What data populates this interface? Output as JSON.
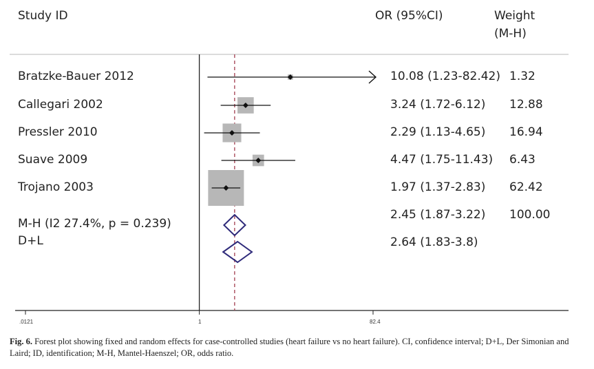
{
  "headers": {
    "study": "Study ID",
    "or": "OR (95%CI)",
    "weight_line1": "Weight",
    "weight_line2": "(M-H)"
  },
  "caption": {
    "label": "Fig. 6.",
    "text": "Forest plot showing fixed and random effects for case-controlled studies (heart failure vs no heart failure). CI, confidence interval; D+L, Der Simonian and Laird; ID, identification; M-H, Mantel-Haenszel; OR, odds ratio."
  },
  "chart_data": {
    "type": "forest",
    "x_scale": "log",
    "xlim": [
      0.0121,
      82.4
    ],
    "x_ticks": [
      ".0121",
      "1",
      "82.4"
    ],
    "reference_line": 1,
    "pooled_reference_line": 2.45,
    "colors": {
      "study_box": "#b7b7b7",
      "pooled_diamond": "#2e2a7a",
      "reference_dashed_line": "#a84a5a",
      "axis": "#222222"
    },
    "studies": [
      {
        "name": "Bratzke-Bauer 2012",
        "or": 10.08,
        "lo": 1.23,
        "hi": 82.42,
        "ci_text": "10.08 (1.23-82.42)",
        "weight": 1.32,
        "weight_text": "1.32",
        "arrow": true
      },
      {
        "name": "Callegari 2002",
        "or": 3.24,
        "lo": 1.72,
        "hi": 6.12,
        "ci_text": "3.24 (1.72-6.12)",
        "weight": 12.88,
        "weight_text": "12.88"
      },
      {
        "name": "Pressler 2010",
        "or": 2.29,
        "lo": 1.13,
        "hi": 4.65,
        "ci_text": "2.29 (1.13-4.65)",
        "weight": 16.94,
        "weight_text": "16.94"
      },
      {
        "name": "Suave 2009",
        "or": 4.47,
        "lo": 1.75,
        "hi": 11.43,
        "ci_text": "4.47 (1.75-11.43)",
        "weight": 6.43,
        "weight_text": "6.43"
      },
      {
        "name": "Trojano 2003",
        "or": 1.97,
        "lo": 1.37,
        "hi": 2.83,
        "ci_text": "1.97 (1.37-2.83)",
        "weight": 62.42,
        "weight_text": "62.42"
      }
    ],
    "pooled": [
      {
        "name": "M-H (I2 27.4%, p = 0.239)",
        "or": 2.45,
        "lo": 1.87,
        "hi": 3.22,
        "ci_text": "2.45 (1.87-3.22)",
        "weight_text": "100.00"
      },
      {
        "name": "D+L",
        "or": 2.64,
        "lo": 1.83,
        "hi": 3.8,
        "ci_text": "2.64 (1.83-3.8)",
        "weight_text": ""
      }
    ]
  }
}
